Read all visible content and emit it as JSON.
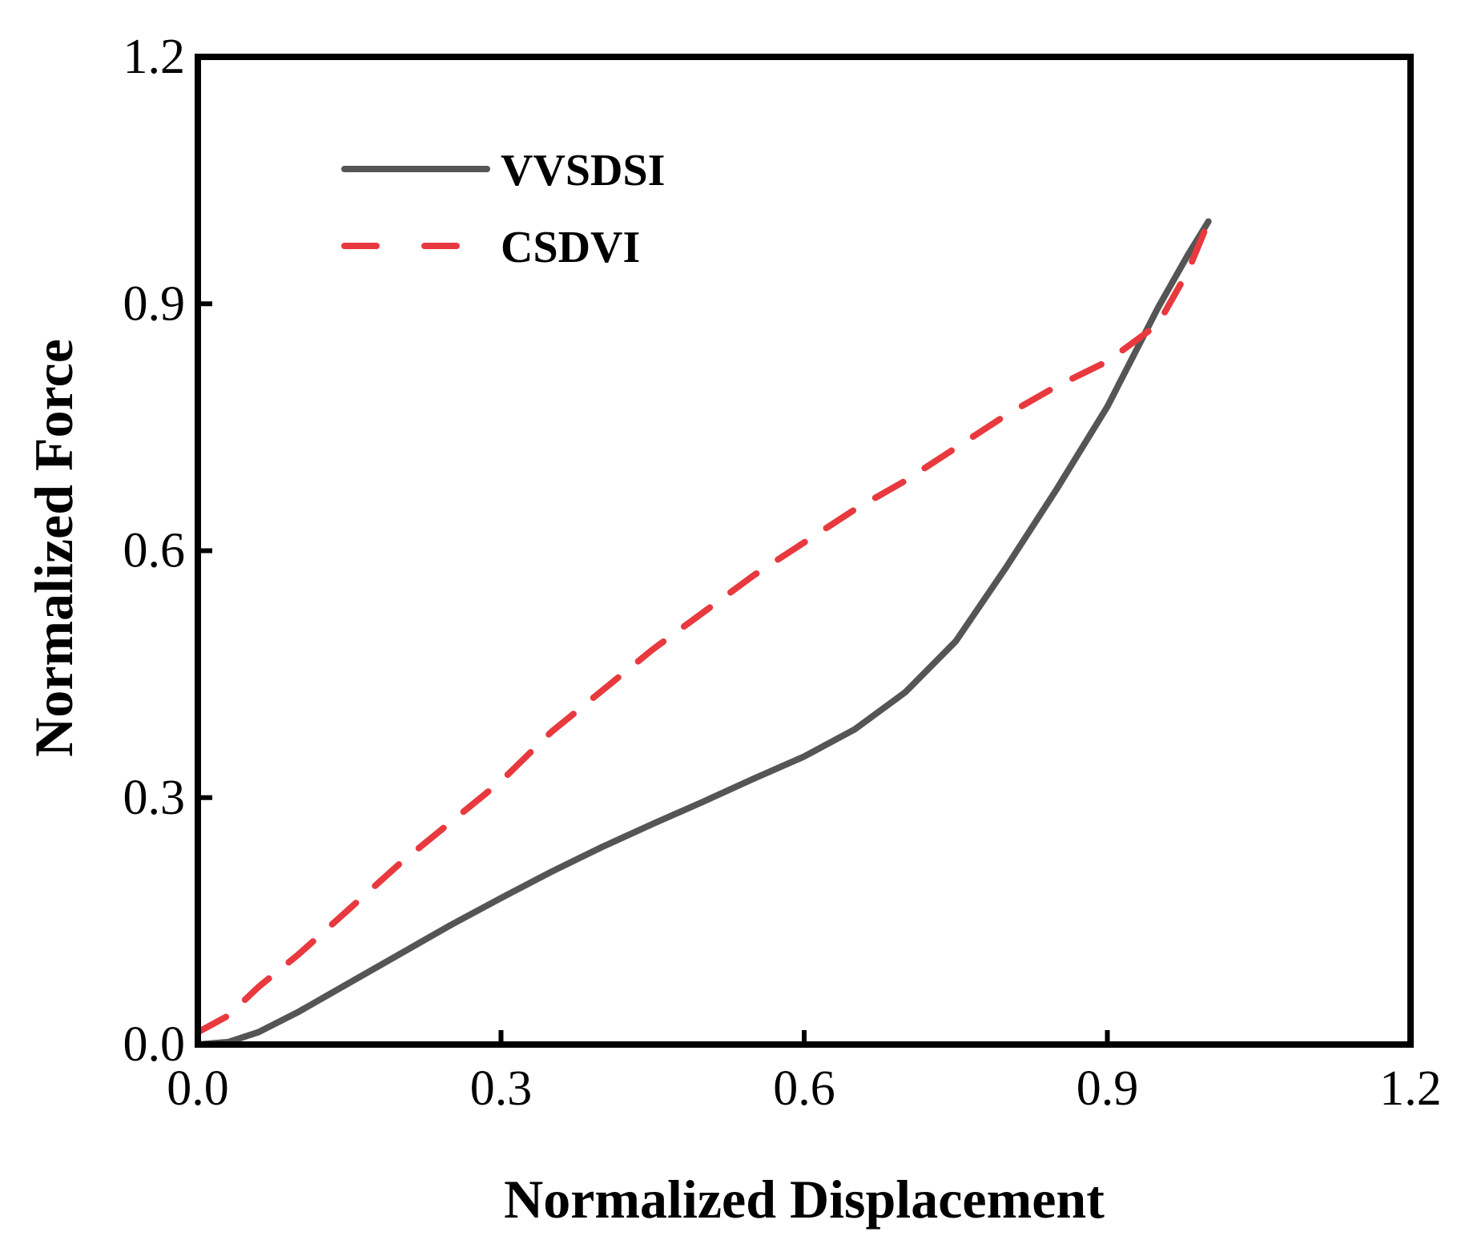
{
  "chart_data": {
    "type": "line",
    "title": "",
    "xlabel": "Normalized Displacement",
    "ylabel": "Normalized Force",
    "xlim": [
      0.0,
      1.2
    ],
    "ylim": [
      0.0,
      1.2
    ],
    "xticks": [
      0.0,
      0.3,
      0.6,
      0.9,
      1.2
    ],
    "yticks": [
      0.0,
      0.3,
      0.6,
      0.9,
      1.2
    ],
    "xtick_labels": [
      "0.0",
      "0.3",
      "0.6",
      "0.9",
      "1.2"
    ],
    "ytick_labels": [
      "0.0",
      "0.3",
      "0.6",
      "0.9",
      "1.2"
    ],
    "grid": false,
    "legend_position": "top-left",
    "series": [
      {
        "name": "VVSDSI",
        "color": "#555555",
        "style": "solid",
        "x": [
          0.0,
          0.03,
          0.06,
          0.1,
          0.15,
          0.2,
          0.25,
          0.3,
          0.35,
          0.4,
          0.45,
          0.5,
          0.55,
          0.6,
          0.65,
          0.7,
          0.75,
          0.8,
          0.85,
          0.9,
          0.95,
          0.98,
          1.0
        ],
        "y": [
          0.0,
          0.003,
          0.015,
          0.04,
          0.075,
          0.11,
          0.145,
          0.178,
          0.21,
          0.24,
          0.268,
          0.295,
          0.323,
          0.35,
          0.383,
          0.428,
          0.49,
          0.58,
          0.675,
          0.775,
          0.895,
          0.96,
          1.0
        ]
      },
      {
        "name": "CSDVI",
        "color": "#e8393f",
        "style": "dashed",
        "x": [
          0.0,
          0.03,
          0.06,
          0.1,
          0.15,
          0.2,
          0.25,
          0.3,
          0.35,
          0.4,
          0.45,
          0.5,
          0.55,
          0.6,
          0.65,
          0.7,
          0.75,
          0.8,
          0.85,
          0.9,
          0.95,
          0.98,
          1.0
        ],
        "y": [
          0.015,
          0.035,
          0.07,
          0.11,
          0.165,
          0.22,
          0.27,
          0.32,
          0.38,
          0.43,
          0.48,
          0.525,
          0.57,
          0.61,
          0.65,
          0.685,
          0.725,
          0.765,
          0.8,
          0.83,
          0.875,
          0.94,
          1.0
        ]
      }
    ]
  }
}
